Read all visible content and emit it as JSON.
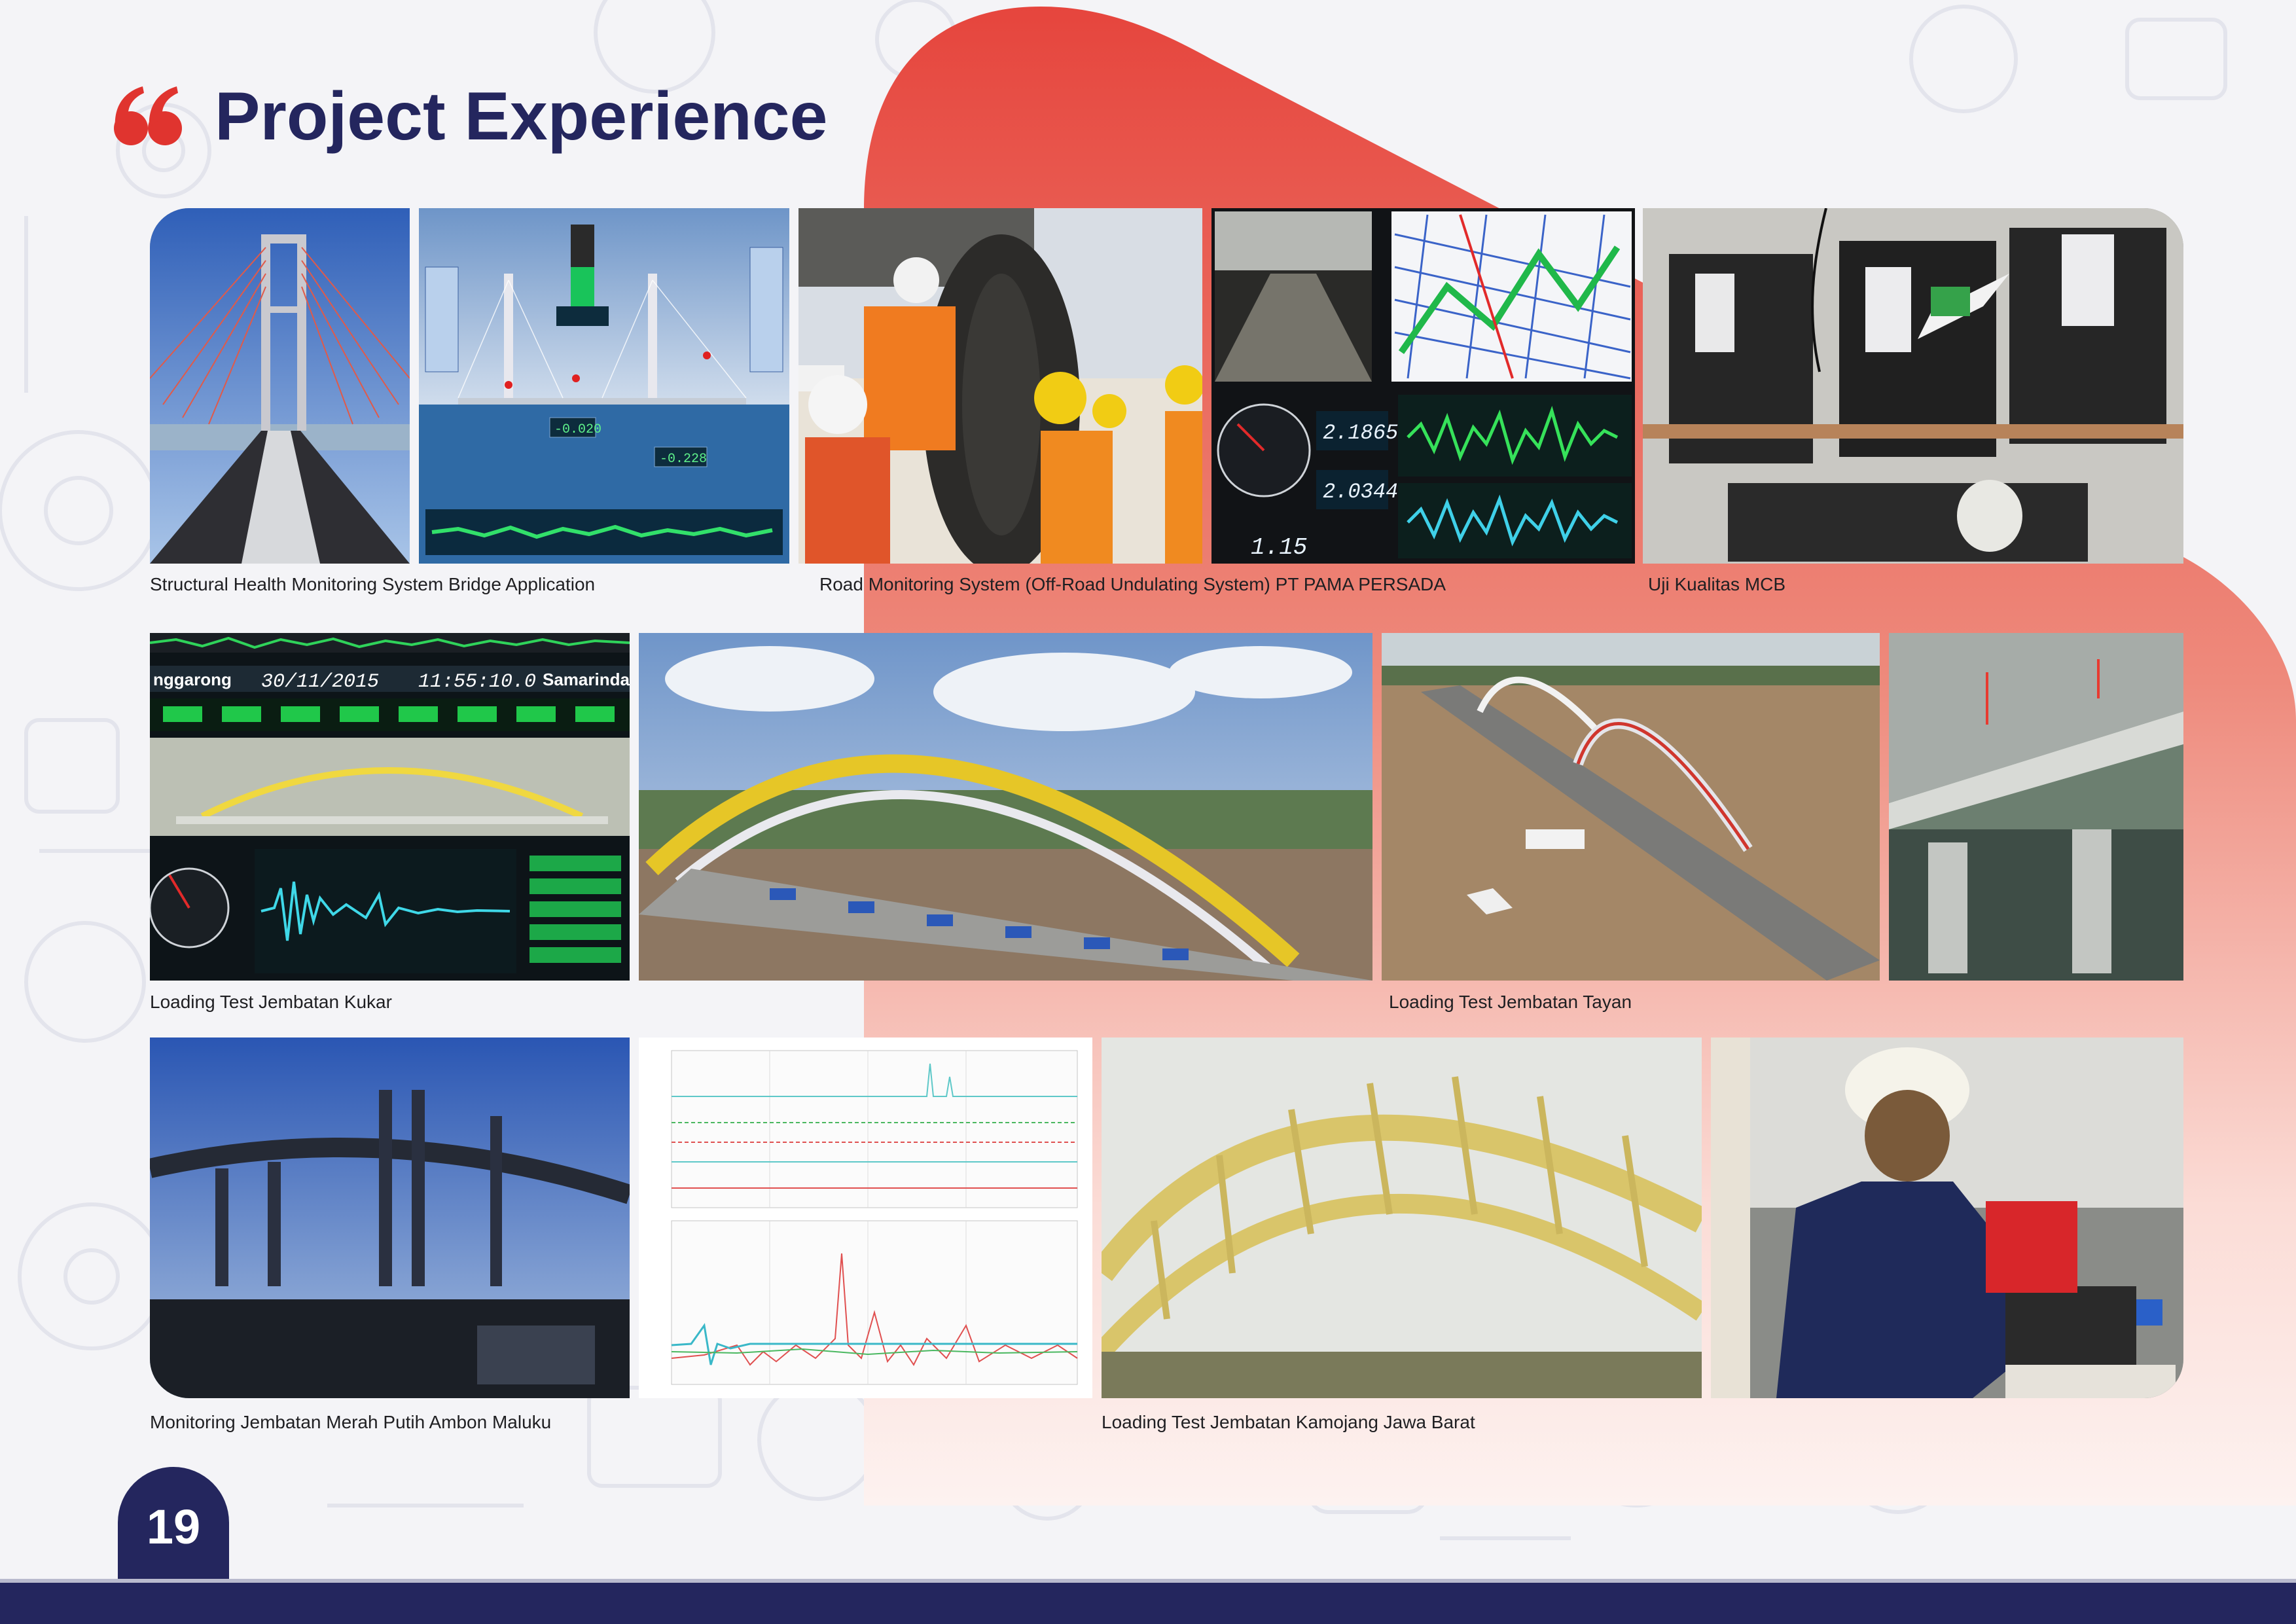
{
  "page": {
    "title": "Project Experience",
    "page_number": "19"
  },
  "colors": {
    "navy": "#24265e",
    "accent_red": "#e03a3a"
  },
  "rows": [
    {
      "captions": [
        "Structural Health Monitoring System Bridge Application",
        "Road Monitoring System (Off-Road Undulating System)  PT PAMA PERSADA",
        "Uji Kualitas MCB"
      ]
    },
    {
      "captions": [
        "Loading Test Jembatan Kukar",
        "Loading Test Jembatan Tayan"
      ]
    },
    {
      "captions": [
        "Monitoring Jembatan Merah Putih Ambon Maluku",
        "Loading Test Jembatan Kamojang Jawa Barat"
      ]
    }
  ],
  "screen_readouts": {
    "bridge_app": [
      "-0.020",
      "-0.228"
    ],
    "road_monitor": [
      "2.1865",
      "2.0344",
      "1.15"
    ],
    "kukar": {
      "left_city": "nggarong",
      "date": "30/11/2015",
      "time": "11:55:10.0",
      "right_city": "Samarinda"
    }
  }
}
